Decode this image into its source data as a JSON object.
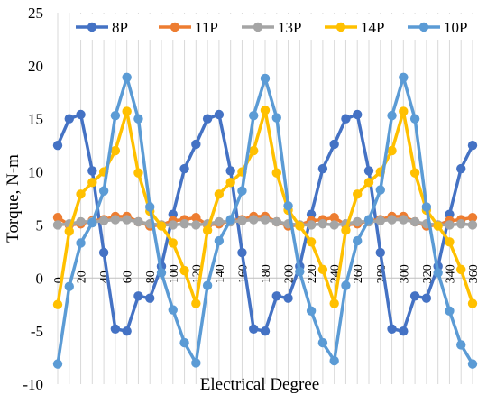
{
  "chart_data": {
    "type": "line",
    "title": "",
    "xlabel": "Electrical Degree",
    "ylabel": "Torque, N-m",
    "xlim": [
      0,
      360
    ],
    "ylim": [
      -10,
      25
    ],
    "yticks": [
      -10,
      -5,
      0,
      5,
      10,
      15,
      20,
      25
    ],
    "ytick_labels": [
      "-10",
      "-5",
      "0",
      "5",
      "10",
      "15",
      "20",
      "25"
    ],
    "xticks": [
      0,
      20,
      40,
      60,
      80,
      100,
      120,
      140,
      160,
      180,
      200,
      220,
      240,
      260,
      280,
      300,
      320,
      340,
      360
    ],
    "xtick_labels": [
      "0",
      "20",
      "40",
      "60",
      "80",
      "100",
      "120",
      "140",
      "160",
      "180",
      "200",
      "220",
      "240",
      "260",
      "280",
      "300",
      "320",
      "340",
      "360"
    ],
    "grid": "vertical",
    "legend_position": "top",
    "x": [
      0,
      10,
      20,
      30,
      40,
      50,
      60,
      70,
      80,
      90,
      100,
      110,
      120,
      130,
      140,
      150,
      160,
      170,
      180,
      190,
      200,
      210,
      220,
      230,
      240,
      250,
      260,
      270,
      280,
      290,
      300,
      310,
      320,
      330,
      340,
      350,
      360
    ],
    "series": [
      {
        "name": "8P",
        "color": "#4472C4",
        "values": [
          12.5,
          15.0,
          15.4,
          10.1,
          2.4,
          -4.8,
          -5.0,
          -1.7,
          -1.9,
          1.1,
          6.0,
          10.3,
          12.6,
          15.0,
          15.4,
          10.1,
          2.4,
          -4.8,
          -5.0,
          -1.7,
          -1.9,
          1.1,
          6.0,
          10.3,
          12.6,
          15.0,
          15.4,
          10.1,
          2.4,
          -4.8,
          -5.0,
          -1.7,
          -1.9,
          1.1,
          6.0,
          10.3,
          12.5
        ]
      },
      {
        "name": "11P",
        "color": "#ED7D31",
        "values": [
          5.7,
          5.0,
          5.1,
          5.4,
          5.5,
          5.8,
          5.8,
          5.3,
          4.9,
          5.0,
          5.4,
          5.5,
          5.7,
          5.0,
          5.1,
          5.4,
          5.5,
          5.8,
          5.8,
          5.3,
          4.9,
          5.0,
          5.4,
          5.5,
          5.7,
          5.0,
          5.1,
          5.4,
          5.5,
          5.8,
          5.8,
          5.3,
          4.9,
          5.0,
          5.4,
          5.5,
          5.7
        ]
      },
      {
        "name": "13P",
        "color": "#A5A5A5",
        "values": [
          5.0,
          5.1,
          5.3,
          5.3,
          5.4,
          5.5,
          5.5,
          5.3,
          5.1,
          5.0,
          5.0,
          5.1,
          5.0,
          5.1,
          5.3,
          5.3,
          5.4,
          5.5,
          5.5,
          5.3,
          5.1,
          5.0,
          5.0,
          5.1,
          5.0,
          5.1,
          5.3,
          5.3,
          5.4,
          5.5,
          5.5,
          5.3,
          5.1,
          5.0,
          5.0,
          5.1,
          5.0
        ]
      },
      {
        "name": "14P",
        "color": "#FFC000",
        "values": [
          -2.5,
          4.4,
          7.9,
          9.0,
          10.0,
          12.0,
          15.7,
          9.9,
          6.3,
          4.9,
          3.3,
          0.7,
          -2.4,
          4.5,
          7.9,
          9.0,
          10.0,
          12.0,
          15.8,
          9.9,
          6.4,
          4.9,
          3.4,
          0.8,
          -2.4,
          4.5,
          7.9,
          9.0,
          10.0,
          12.0,
          15.7,
          9.9,
          6.4,
          4.9,
          3.4,
          0.8,
          -2.4
        ]
      },
      {
        "name": "10P",
        "color": "#5B9BD5",
        "values": [
          -8.1,
          -0.8,
          3.3,
          5.2,
          8.2,
          15.3,
          18.9,
          15.0,
          6.7,
          0.5,
          -3.0,
          -6.1,
          -8.0,
          -0.7,
          3.5,
          5.5,
          8.2,
          15.3,
          18.8,
          15.1,
          6.8,
          0.6,
          -3.1,
          -6.1,
          -7.8,
          -0.7,
          3.5,
          5.5,
          8.3,
          15.3,
          18.9,
          15.0,
          6.7,
          0.5,
          -3.1,
          -6.3,
          -8.1
        ]
      }
    ]
  }
}
